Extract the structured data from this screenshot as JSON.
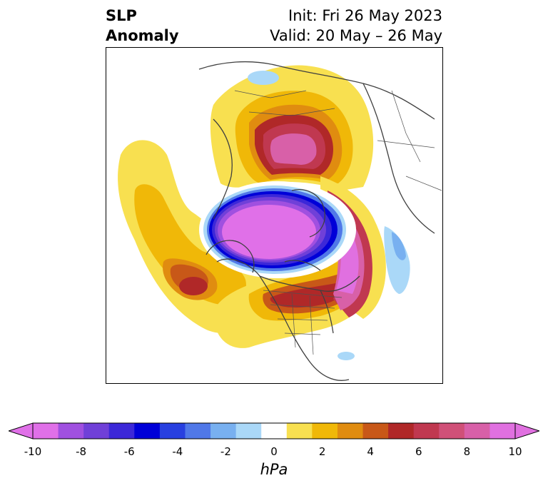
{
  "header": {
    "title_line1": "SLP",
    "title_line2": "Anomaly",
    "init": "Init: Fri 26 May 2023",
    "valid": "Valid: 20 May – 26 May"
  },
  "map": {
    "projection": "north-polar-stereographic",
    "variable": "sea level pressure anomaly",
    "features": [
      "coastlines",
      "country borders",
      "state/province borders"
    ]
  },
  "colorbar": {
    "unit": "hPa",
    "extend": "both",
    "ticks": [
      "-10",
      "-8",
      "-6",
      "-4",
      "-2",
      "0",
      "2",
      "4",
      "6",
      "8",
      "10"
    ],
    "colors": [
      "#e070e8",
      "#a050e0",
      "#7040d8",
      "#3c28d8",
      "#0000d8",
      "#2840e0",
      "#5078e8",
      "#78b0f0",
      "#aad8f8",
      "#ffffff",
      "#f8e050",
      "#f0b808",
      "#e08c10",
      "#c85818",
      "#b02828",
      "#c03850",
      "#d05078",
      "#d860a8",
      "#e070e0"
    ],
    "under_color": "#e070e8",
    "over_color": "#e070e0"
  }
}
